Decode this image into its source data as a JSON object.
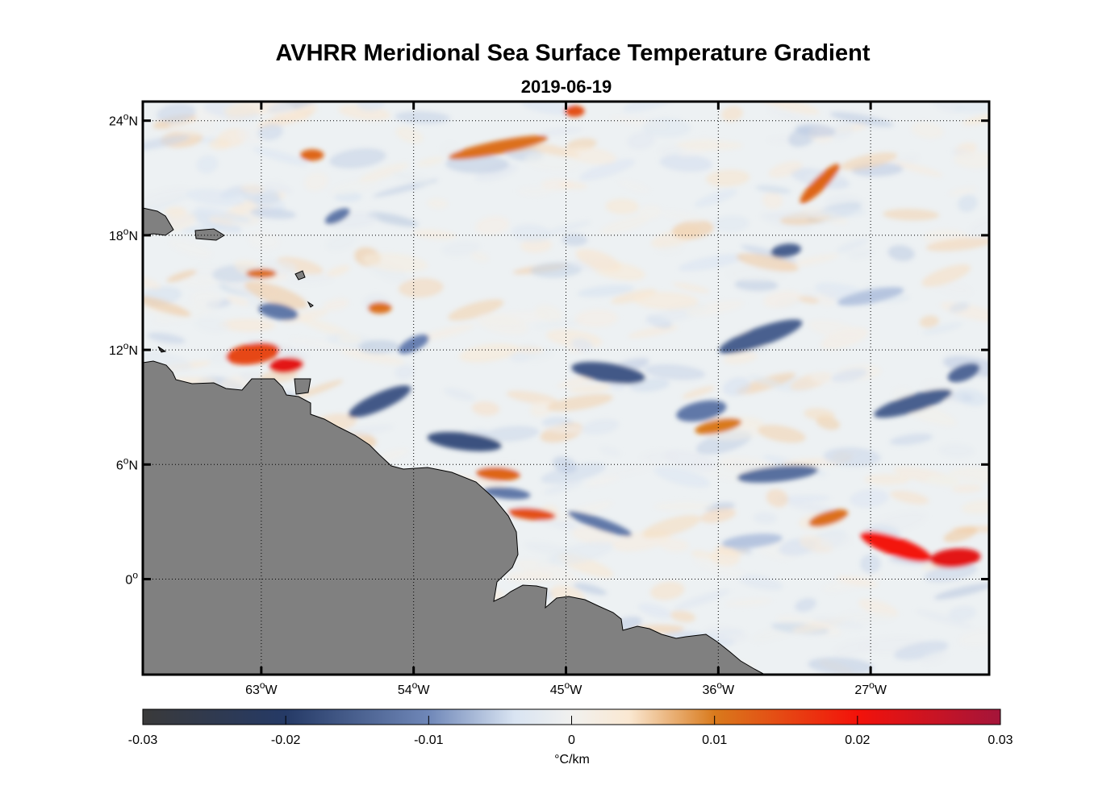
{
  "title": "AVHRR Meridional Sea Surface Temperature Gradient",
  "subtitle": "2019-06-19",
  "map": {
    "lon_range": [
      -70,
      -20
    ],
    "lat_range": [
      -5,
      25
    ],
    "grid": true,
    "land_color": "#808080",
    "lat_ticks": [
      {
        "value": 24,
        "num": "24",
        "hemi": "N"
      },
      {
        "value": 18,
        "num": "18",
        "hemi": "N"
      },
      {
        "value": 12,
        "num": "12",
        "hemi": "N"
      },
      {
        "value": 6,
        "num": "6",
        "hemi": "N"
      },
      {
        "value": 0,
        "num": "0",
        "hemi": ""
      }
    ],
    "lon_ticks": [
      {
        "value": -63,
        "num": "63",
        "hemi": "W"
      },
      {
        "value": -54,
        "num": "54",
        "hemi": "W"
      },
      {
        "value": -45,
        "num": "45",
        "hemi": "W"
      },
      {
        "value": -36,
        "num": "36",
        "hemi": "W"
      },
      {
        "value": -27,
        "num": "27",
        "hemi": "W"
      }
    ]
  },
  "colorbar": {
    "label": "°C/km",
    "range": [
      -0.03,
      0.03
    ],
    "tick_values": [
      -0.03,
      -0.02,
      -0.01,
      0,
      0.01,
      0.02,
      0.03
    ],
    "tick_labels": [
      "-0.03",
      "-0.02",
      "-0.01",
      "0",
      "0.01",
      "0.02",
      "0.03"
    ],
    "stops": [
      {
        "value": -0.03,
        "color": "#3a3a3a"
      },
      {
        "value": -0.02,
        "color": "#253a66"
      },
      {
        "value": -0.01,
        "color": "#6f87b8"
      },
      {
        "value": -0.004,
        "color": "#d9e4f2"
      },
      {
        "value": 0,
        "color": "#f1f1ef"
      },
      {
        "value": 0.004,
        "color": "#fae8d2"
      },
      {
        "value": 0.01,
        "color": "#d97a1c"
      },
      {
        "value": 0.02,
        "color": "#f3120a"
      },
      {
        "value": 0.03,
        "color": "#a4153a"
      }
    ]
  },
  "features": [
    {
      "lon": -63.5,
      "lat": 11.8,
      "rx": 1.6,
      "ry": 0.55,
      "v": 0.015,
      "rot": 0.15
    },
    {
      "lon": -61.5,
      "lat": 11.2,
      "rx": 1.0,
      "ry": 0.4,
      "v": 0.022,
      "rot": 0.1
    },
    {
      "lon": -56,
      "lat": 9.3,
      "rx": 2.0,
      "ry": 0.45,
      "v": -0.016,
      "rot": 0.45
    },
    {
      "lon": -51,
      "lat": 7.2,
      "rx": 2.2,
      "ry": 0.45,
      "v": -0.017,
      "rot": -0.12
    },
    {
      "lon": -49,
      "lat": 5.5,
      "rx": 1.3,
      "ry": 0.35,
      "v": 0.012,
      "rot": -0.05
    },
    {
      "lon": -47,
      "lat": 3.4,
      "rx": 1.4,
      "ry": 0.3,
      "v": 0.014,
      "rot": -0.1
    },
    {
      "lon": -48.5,
      "lat": 4.5,
      "rx": 1.4,
      "ry": 0.3,
      "v": -0.012,
      "rot": -0.1
    },
    {
      "lon": -42.5,
      "lat": 10.8,
      "rx": 2.2,
      "ry": 0.5,
      "v": -0.016,
      "rot": -0.15
    },
    {
      "lon": -37,
      "lat": 8.8,
      "rx": 1.5,
      "ry": 0.5,
      "v": -0.012,
      "rot": 0.2
    },
    {
      "lon": -33.5,
      "lat": 12.7,
      "rx": 2.6,
      "ry": 0.5,
      "v": -0.015,
      "rot": 0.35
    },
    {
      "lon": -24.5,
      "lat": 9.2,
      "rx": 2.4,
      "ry": 0.45,
      "v": -0.015,
      "rot": 0.3
    },
    {
      "lon": -21.5,
      "lat": 10.8,
      "rx": 1.0,
      "ry": 0.4,
      "v": -0.014,
      "rot": 0.4
    },
    {
      "lon": -32.5,
      "lat": 5.5,
      "rx": 2.4,
      "ry": 0.4,
      "v": -0.013,
      "rot": 0.1
    },
    {
      "lon": -25.5,
      "lat": 1.7,
      "rx": 2.2,
      "ry": 0.5,
      "v": 0.02,
      "rot": -0.35
    },
    {
      "lon": -22,
      "lat": 1.1,
      "rx": 1.5,
      "ry": 0.5,
      "v": 0.022,
      "rot": 0.08
    },
    {
      "lon": -29.5,
      "lat": 3.2,
      "rx": 1.2,
      "ry": 0.35,
      "v": 0.011,
      "rot": 0.3
    },
    {
      "lon": -36,
      "lat": 8.0,
      "rx": 1.4,
      "ry": 0.35,
      "v": 0.01,
      "rot": 0.2
    },
    {
      "lon": -32,
      "lat": 17.2,
      "rx": 0.9,
      "ry": 0.35,
      "v": -0.015,
      "rot": 0.15
    },
    {
      "lon": -30,
      "lat": 20.7,
      "rx": 1.6,
      "ry": 0.35,
      "v": 0.012,
      "rot": 1.0
    },
    {
      "lon": -49,
      "lat": 22.6,
      "rx": 3.0,
      "ry": 0.35,
      "v": 0.011,
      "rot": 0.2
    },
    {
      "lon": -44.5,
      "lat": 24.5,
      "rx": 0.6,
      "ry": 0.3,
      "v": 0.014,
      "rot": 0
    },
    {
      "lon": -63,
      "lat": 16.0,
      "rx": 0.9,
      "ry": 0.25,
      "v": 0.011,
      "rot": 0
    },
    {
      "lon": -62,
      "lat": 14.0,
      "rx": 1.2,
      "ry": 0.4,
      "v": -0.012,
      "rot": -0.2
    },
    {
      "lon": -56,
      "lat": 14.2,
      "rx": 0.7,
      "ry": 0.3,
      "v": 0.011,
      "rot": 0
    },
    {
      "lon": -54,
      "lat": 12.3,
      "rx": 1.0,
      "ry": 0.35,
      "v": -0.011,
      "rot": 0.5
    },
    {
      "lon": -43,
      "lat": 2.9,
      "rx": 2.0,
      "ry": 0.3,
      "v": -0.012,
      "rot": -0.35
    },
    {
      "lon": -58.5,
      "lat": 19.0,
      "rx": 0.8,
      "ry": 0.3,
      "v": -0.012,
      "rot": 0.5
    },
    {
      "lon": -34,
      "lat": 2.0,
      "rx": 1.8,
      "ry": 0.35,
      "v": -0.006,
      "rot": 0.1
    },
    {
      "lon": -27,
      "lat": 14.8,
      "rx": 2.0,
      "ry": 0.35,
      "v": -0.006,
      "rot": 0.2
    },
    {
      "lon": -60,
      "lat": 22.2,
      "rx": 0.7,
      "ry": 0.3,
      "v": 0.012,
      "rot": 0
    }
  ]
}
